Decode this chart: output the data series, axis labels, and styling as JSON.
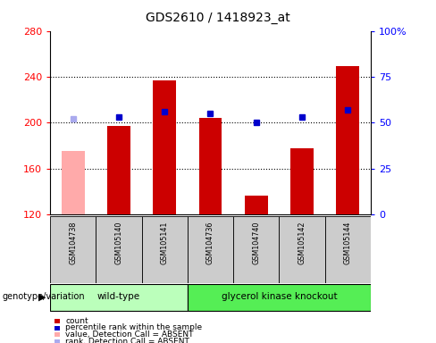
{
  "title": "GDS2610 / 1418923_at",
  "samples": [
    "GSM104738",
    "GSM105140",
    "GSM105141",
    "GSM104736",
    "GSM104740",
    "GSM105142",
    "GSM105144"
  ],
  "count_values": [
    175,
    197,
    237,
    204,
    136,
    178,
    249
  ],
  "rank_values": [
    52,
    53,
    56,
    55,
    50,
    53,
    57
  ],
  "absent_flags": [
    true,
    false,
    false,
    false,
    false,
    false,
    false
  ],
  "y_min": 120,
  "y_max": 280,
  "y_ticks": [
    120,
    160,
    200,
    240,
    280
  ],
  "y2_ticks": [
    0,
    25,
    50,
    75,
    100
  ],
  "y2_labels": [
    "0",
    "25",
    "50",
    "75",
    "100%"
  ],
  "bar_color_present": "#cc0000",
  "bar_color_absent": "#ffaaaa",
  "rank_color_present": "#0000cc",
  "rank_color_absent": "#aaaaee",
  "group1_label": "wild-type",
  "group2_label": "glycerol kinase knockout",
  "group1_color": "#bbffbb",
  "group2_color": "#55ee55",
  "group_label": "genotype/variation",
  "legend_items": [
    {
      "label": "count",
      "color": "#cc0000"
    },
    {
      "label": "percentile rank within the sample",
      "color": "#0000cc"
    },
    {
      "label": "value, Detection Call = ABSENT",
      "color": "#ffaaaa"
    },
    {
      "label": "rank, Detection Call = ABSENT",
      "color": "#aaaaee"
    }
  ],
  "bg_color": "#ffffff",
  "plot_bg": "#ffffff",
  "sample_box_color": "#cccccc",
  "grid_color": "#000000"
}
